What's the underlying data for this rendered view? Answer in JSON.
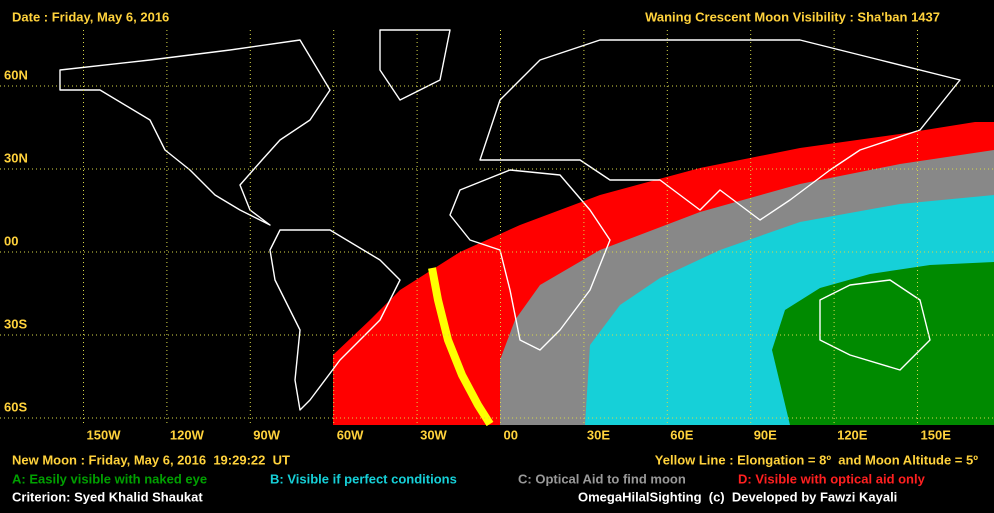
{
  "header": {
    "date": "Date : Friday, May 6, 2016",
    "title": "Waning Crescent Moon Visibility : Sha'ban 1437"
  },
  "map": {
    "latitude_labels": [
      "60N",
      "30N",
      "00",
      "30S",
      "60S"
    ],
    "longitude_labels": [
      "150W",
      "120W",
      "90W",
      "60W",
      "30W",
      "00",
      "30E",
      "60E",
      "90E",
      "120E",
      "150E"
    ]
  },
  "footer": {
    "new_moon": "New Moon : Friday, May 6, 2016  19:29:22  UT",
    "yellow_line": "Yellow Line : Elongation = 8º  and Moon Altitude = 5º",
    "legend": [
      "A: Easily visible with naked eye",
      "B: Visible if perfect conditions",
      "C: Optical Aid to find moon",
      "D: Visible with optical aid only"
    ],
    "criterion": "Criterion: Syed Khalid Shaukat",
    "credit": "OmegaHilalSighting  (c)  Developed by Fawzi Kayali"
  }
}
